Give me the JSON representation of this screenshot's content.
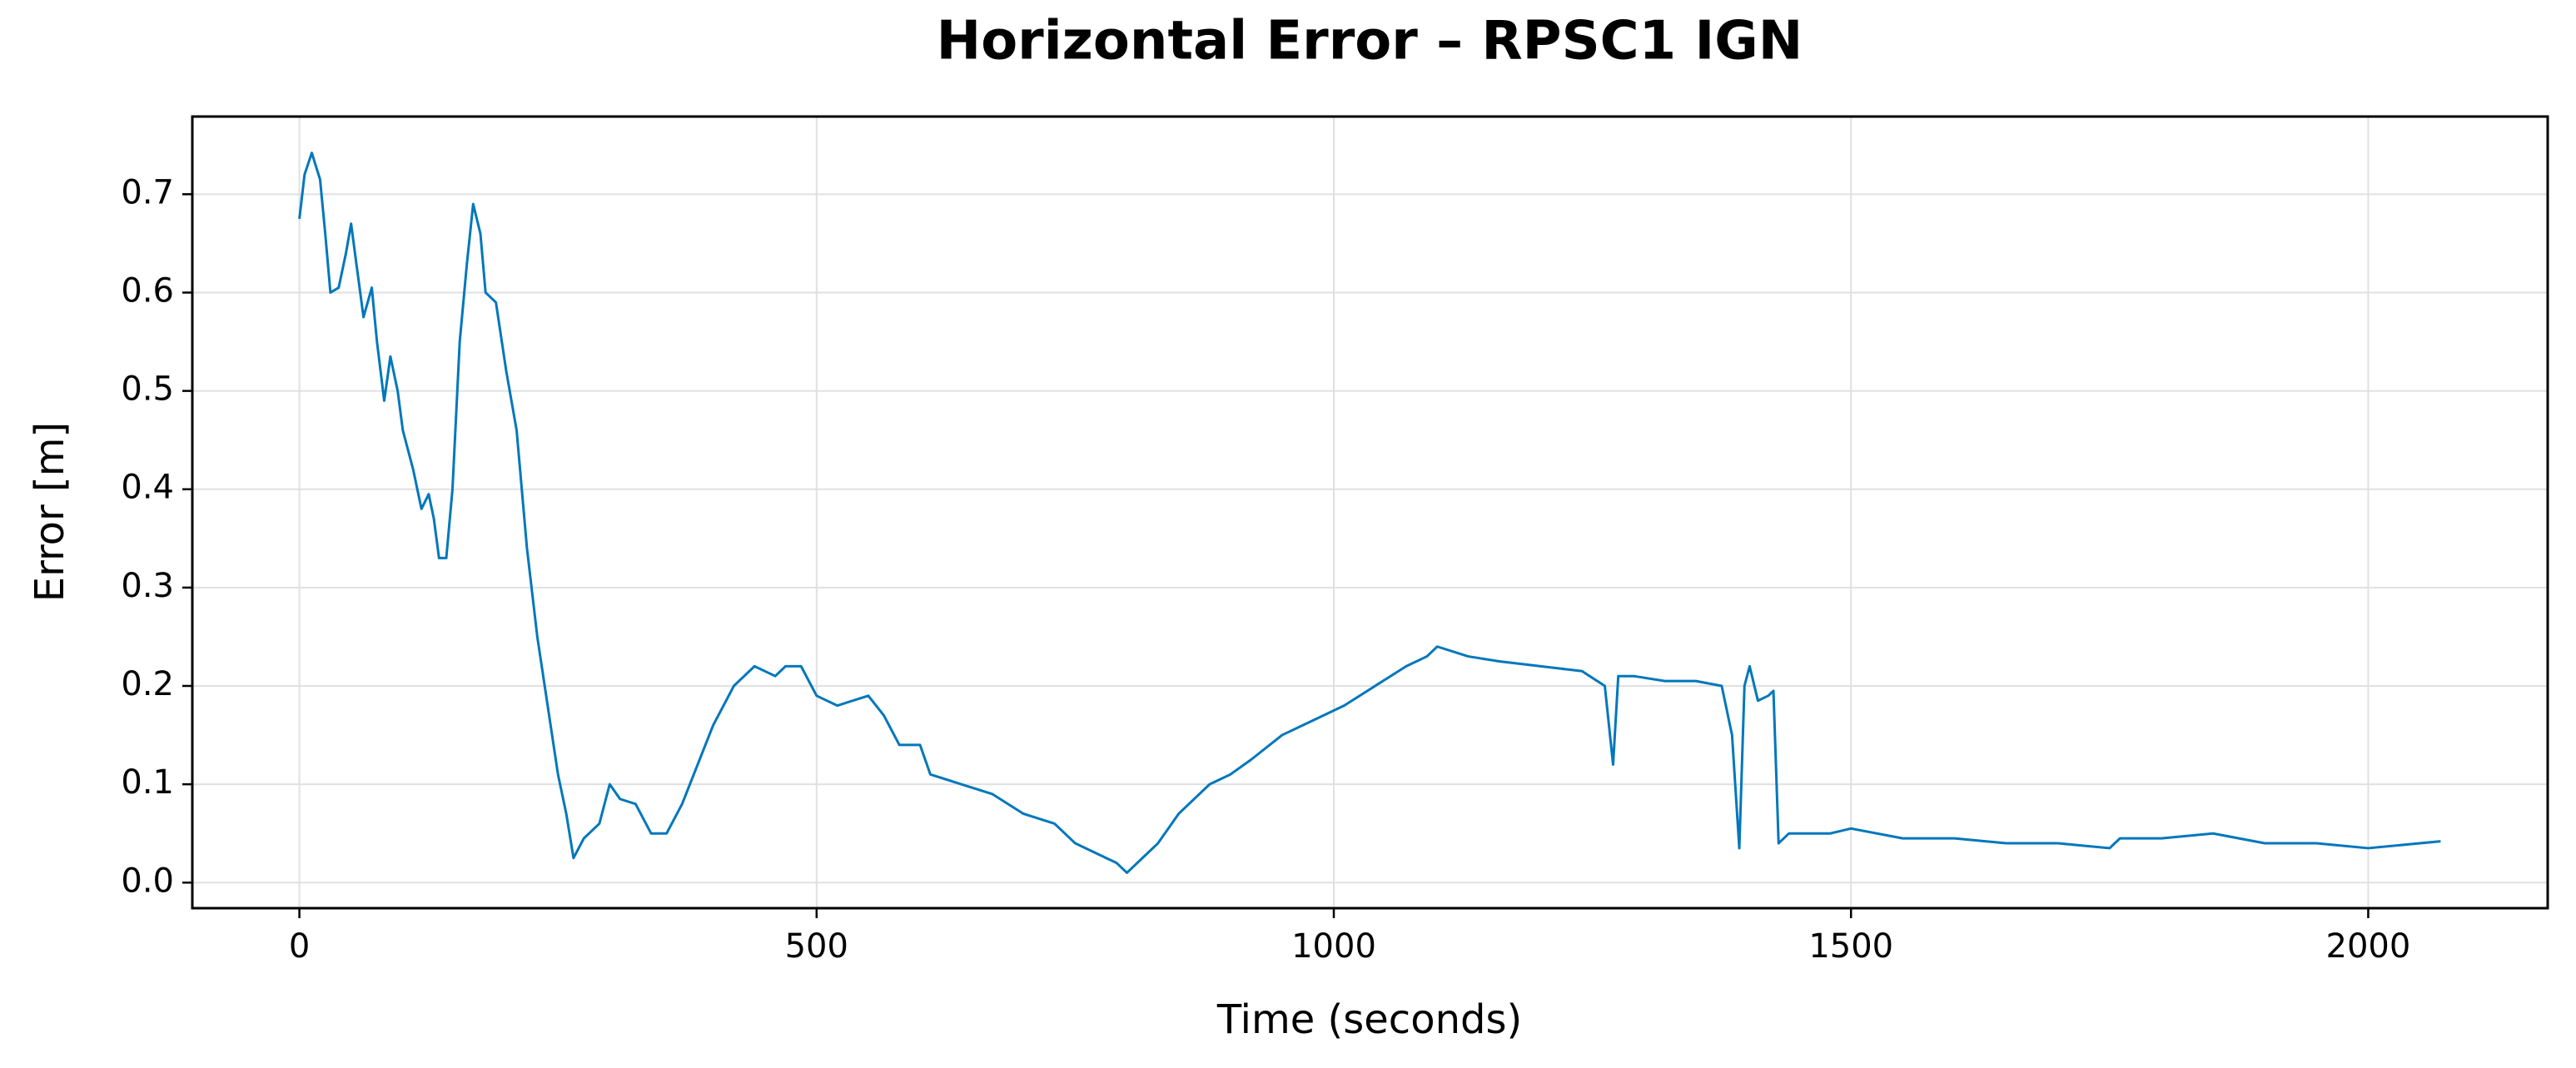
{
  "chart_data": {
    "type": "line",
    "title": "Horizontal Error – RPSC1 IGN",
    "x_label": "Time (seconds)",
    "y_label": "Error [m]",
    "xlim": [
      -103.5,
      2173.5
    ],
    "xticks": [
      0,
      500,
      1000,
      1500,
      2000
    ],
    "ylim": [
      -0.026,
      0.779
    ],
    "yticks": [
      {
        "value": 0,
        "label": "0.0"
      },
      0.1,
      0.2,
      0.3,
      0.4,
      0.5,
      0.6,
      0.7
    ],
    "grid": true,
    "x": [
      0,
      5,
      12,
      20,
      25,
      30,
      38,
      45,
      50,
      55,
      62,
      70,
      75,
      82,
      88,
      95,
      100,
      110,
      118,
      125,
      130,
      135,
      142,
      148,
      155,
      162,
      168,
      175,
      180,
      190,
      200,
      210,
      220,
      230,
      240,
      250,
      258,
      265,
      275,
      290,
      300,
      310,
      325,
      340,
      355,
      370,
      385,
      400,
      420,
      440,
      460,
      470,
      485,
      500,
      520,
      550,
      565,
      580,
      600,
      610,
      640,
      670,
      700,
      730,
      750,
      770,
      790,
      800,
      815,
      830,
      850,
      880,
      900,
      920,
      950,
      980,
      1010,
      1040,
      1070,
      1090,
      1100,
      1130,
      1160,
      1200,
      1240,
      1262,
      1270,
      1275,
      1290,
      1320,
      1350,
      1375,
      1385,
      1392,
      1397,
      1402,
      1410,
      1420,
      1425,
      1430,
      1440,
      1480,
      1500,
      1550,
      1600,
      1650,
      1700,
      1750,
      1760,
      1800,
      1850,
      1900,
      1950,
      2000,
      2050,
      2070
    ],
    "series": [
      {
        "name": "Horizontal Error",
        "color": "#0077bb",
        "values": [
          0.675,
          0.72,
          0.742,
          0.715,
          0.66,
          0.6,
          0.605,
          0.64,
          0.67,
          0.63,
          0.575,
          0.605,
          0.55,
          0.49,
          0.535,
          0.5,
          0.46,
          0.42,
          0.38,
          0.395,
          0.37,
          0.33,
          0.33,
          0.4,
          0.55,
          0.63,
          0.69,
          0.66,
          0.6,
          0.59,
          0.52,
          0.46,
          0.34,
          0.25,
          0.18,
          0.11,
          0.07,
          0.025,
          0.045,
          0.06,
          0.1,
          0.085,
          0.08,
          0.05,
          0.05,
          0.08,
          0.12,
          0.16,
          0.2,
          0.22,
          0.21,
          0.22,
          0.22,
          0.19,
          0.18,
          0.19,
          0.17,
          0.14,
          0.14,
          0.11,
          0.1,
          0.09,
          0.07,
          0.06,
          0.04,
          0.03,
          0.02,
          0.01,
          0.025,
          0.04,
          0.07,
          0.1,
          0.11,
          0.125,
          0.15,
          0.165,
          0.18,
          0.2,
          0.22,
          0.23,
          0.24,
          0.23,
          0.225,
          0.22,
          0.215,
          0.2,
          0.12,
          0.21,
          0.21,
          0.205,
          0.205,
          0.2,
          0.15,
          0.035,
          0.2,
          0.22,
          0.185,
          0.19,
          0.195,
          0.04,
          0.05,
          0.05,
          0.055,
          0.045,
          0.045,
          0.04,
          0.04,
          0.035,
          0.045,
          0.045,
          0.05,
          0.04,
          0.04,
          0.035,
          0.04,
          0.042
        ]
      }
    ]
  }
}
